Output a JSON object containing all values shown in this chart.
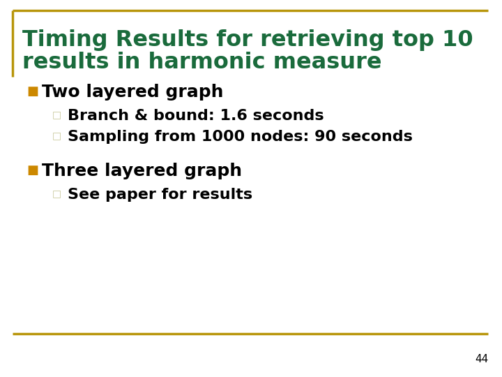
{
  "title_line1": "Timing Results for retrieving top 10",
  "title_line2": "results in harmonic measure",
  "title_color": "#1a6b3c",
  "background_color": "#ffffff",
  "border_color": "#b8960c",
  "bullet_color": "#cc8800",
  "sub_bullet_color": "#c8c89a",
  "text_color": "#000000",
  "bullet1_text": "Two layered graph",
  "bullet1_sub1": "Branch & bound: 1.6 seconds",
  "bullet1_sub2": "Sampling from 1000 nodes: 90 seconds",
  "bullet2_text": "Three layered graph",
  "bullet2_sub1": "See paper for results",
  "page_number": "44",
  "title_fontsize": 23,
  "bullet_fontsize": 18,
  "sub_fontsize": 16,
  "page_fontsize": 11
}
